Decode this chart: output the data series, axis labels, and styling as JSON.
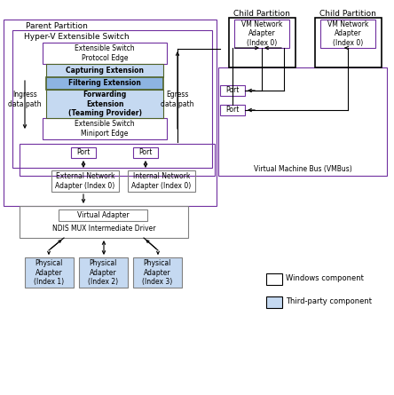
{
  "bg_color": "#ffffff",
  "light_blue": "#c5d9f1",
  "medium_blue": "#8db4e2",
  "ext_border": "#4f81bd",
  "purple": "#7030a0",
  "gray": "#808080",
  "black": "#000000",
  "title": "Parent Partition",
  "hyper_v": "Hyper-V Extensible Switch",
  "proto_edge": "Extensible Switch\nProtocol Edge",
  "capturing": "Capturing Extension",
  "filtering": "Filtering Extension",
  "forwarding": "Forwarding\nExtension\n(Teaming Provider)",
  "miniport": "Extensible Switch\nMiniport Edge",
  "ingress": "Ingress\ndata path",
  "egress": "Egress\ndata path",
  "port": "Port",
  "ext_net": "External Network\nAdapter (Index 0)",
  "int_net": "Internal Network\nAdapter (Index 0)",
  "virt_adapter": "Virtual Adapter",
  "ndis": "NDIS MUX Intermediate Driver",
  "phys1": "Physical\nAdapter\n(Index 1)",
  "phys2": "Physical\nAdapter\n(Index 2)",
  "phys3": "Physical\nAdapter\n(Index 3)",
  "child1": "Child Partition",
  "child2": "Child Partition",
  "vm1": "VM Network\nAdapter\n(Index 0)",
  "vm2": "VM Network\nAdapter\n(Index 0)",
  "vmbus": "Virtual Machine Bus (VMBus)",
  "leg_win": "Windows component",
  "leg_third": "Third-party component"
}
